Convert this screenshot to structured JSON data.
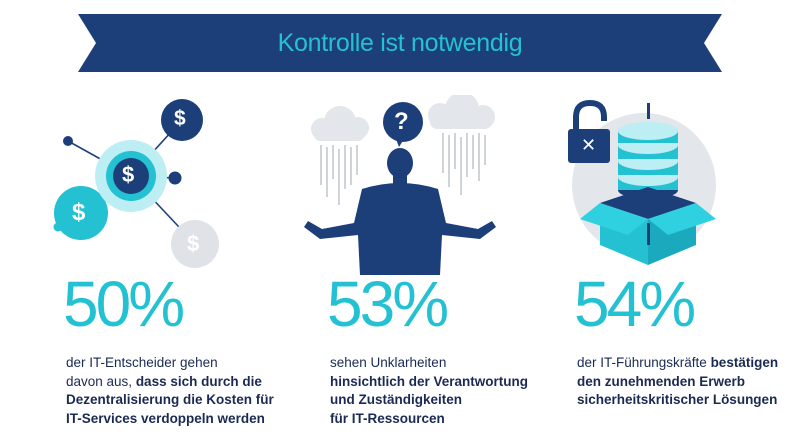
{
  "title": "Kontrolle ist notwendig",
  "colors": {
    "navy": "#1c3f7a",
    "turquoise": "#24c1d3",
    "text": "#1b2a52",
    "cloud": "#e3e6ea",
    "grey": "#dfe3e7"
  },
  "stats": [
    {
      "percent": "50%",
      "line1": "der IT-Entscheider gehen",
      "line2_plain": "davon aus, ",
      "line2_bold": "dass sich durch die",
      "line3_bold": "Dezentralisierung die Kosten für",
      "line4_bold": "IT-Services verdoppeln werden",
      "icon": "dollar-network-icon",
      "icon_symbol": "$"
    },
    {
      "percent": "53%",
      "line1": "sehen Unklarheiten",
      "line2_bold": "hinsichtlich der Verantwortung",
      "line3_bold": "und Zuständigkeiten",
      "line4_bold": "für IT-Ressourcen",
      "icon": "confused-person-icon",
      "icon_symbol": "?"
    },
    {
      "percent": "54%",
      "line1_plain": "der IT-Führungskräfte ",
      "line1_bold": "bestätigen",
      "line2_bold": "den zunehmenden Erwerb",
      "line3_bold": "sicherheitskritischer Lösungen",
      "icon": "database-box-lock-icon",
      "icon_symbol": "✕"
    }
  ]
}
